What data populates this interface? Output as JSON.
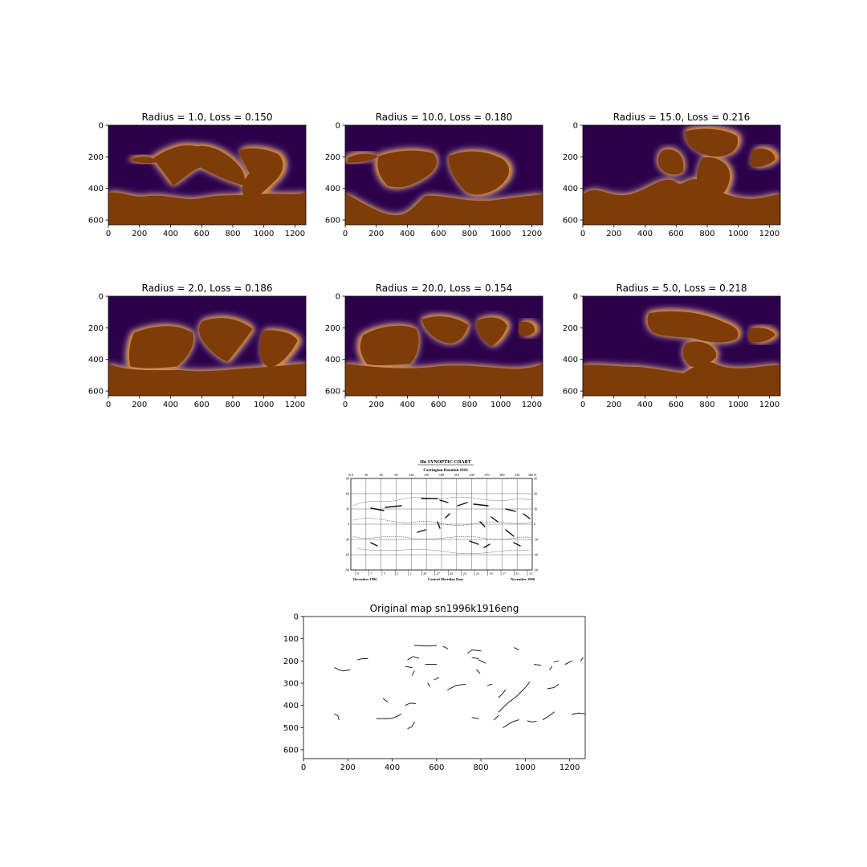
{
  "figure": {
    "panels": [
      {
        "radius": 1.0,
        "loss": 0.15,
        "title": "Radius = 1.0, Loss = 0.150"
      },
      {
        "radius": 10.0,
        "loss": 0.18,
        "title": "Radius = 10.0, Loss = 0.180"
      },
      {
        "radius": 15.0,
        "loss": 0.216,
        "title": "Radius = 15.0, Loss = 0.216"
      },
      {
        "radius": 2.0,
        "loss": 0.186,
        "title": "Radius = 2.0, Loss = 0.186"
      },
      {
        "radius": 20.0,
        "loss": 0.154,
        "title": "Radius = 20.0, Loss = 0.154"
      },
      {
        "radius": 5.0,
        "loss": 0.218,
        "title": "Radius = 5.0, Loss = 0.218"
      }
    ],
    "original": {
      "title": "Original map sn1996k1916eng"
    },
    "synoptic": {
      "title": "Hα SYNOPTIC CHART",
      "subtitle": "Carrington Rotation 1916",
      "top_ticks": [
        "N 0",
        "30",
        "60",
        "90",
        "120",
        "150",
        "180",
        "210",
        "240",
        "270",
        "300",
        "330",
        "360 N"
      ],
      "side_ticks": [
        "90",
        "60",
        "30",
        "0",
        "-30",
        "-60",
        "-90"
      ],
      "bottom_dates": [
        "9",
        "7",
        "5",
        "3",
        "1",
        "29",
        "27",
        "25",
        "23",
        "21",
        "19",
        "17",
        "15",
        "13"
      ],
      "footer_left": "December 1996",
      "footer_center": "Central Meridian Date",
      "footer_right": "November 1996"
    }
  },
  "colors": {
    "dark": "#2d004b",
    "brown": "#7f3b08",
    "orange": "#e08214",
    "white": "#ffffff"
  },
  "chart_data": [
    {
      "type": "heatmap",
      "title": "Radius = 1.0, Loss = 0.150",
      "radius": 1.0,
      "loss": 0.15,
      "xlim": [
        0,
        1270
      ],
      "ylim": [
        630,
        0
      ],
      "xticks": [
        0,
        200,
        400,
        600,
        800,
        1000,
        1200
      ],
      "yticks": [
        0,
        200,
        400,
        600
      ],
      "colormap": "PuOr"
    },
    {
      "type": "heatmap",
      "title": "Radius = 10.0, Loss = 0.180",
      "radius": 10.0,
      "loss": 0.18,
      "xlim": [
        0,
        1270
      ],
      "ylim": [
        630,
        0
      ],
      "xticks": [
        0,
        200,
        400,
        600,
        800,
        1000,
        1200
      ],
      "yticks": [
        0,
        200,
        400,
        600
      ],
      "colormap": "PuOr"
    },
    {
      "type": "heatmap",
      "title": "Radius = 15.0, Loss = 0.216",
      "radius": 15.0,
      "loss": 0.216,
      "xlim": [
        0,
        1270
      ],
      "ylim": [
        630,
        0
      ],
      "xticks": [
        0,
        200,
        400,
        600,
        800,
        1000,
        1200
      ],
      "yticks": [
        0,
        200,
        400,
        600
      ],
      "colormap": "PuOr"
    },
    {
      "type": "heatmap",
      "title": "Radius = 2.0, Loss = 0.186",
      "radius": 2.0,
      "loss": 0.186,
      "xlim": [
        0,
        1270
      ],
      "ylim": [
        630,
        0
      ],
      "xticks": [
        0,
        200,
        400,
        600,
        800,
        1000,
        1200
      ],
      "yticks": [
        0,
        200,
        400,
        600
      ],
      "colormap": "PuOr"
    },
    {
      "type": "heatmap",
      "title": "Radius = 20.0, Loss = 0.154",
      "radius": 20.0,
      "loss": 0.154,
      "xlim": [
        0,
        1270
      ],
      "ylim": [
        630,
        0
      ],
      "xticks": [
        0,
        200,
        400,
        600,
        800,
        1000,
        1200
      ],
      "yticks": [
        0,
        200,
        400,
        600
      ],
      "colormap": "PuOr"
    },
    {
      "type": "heatmap",
      "title": "Radius = 5.0, Loss = 0.218",
      "radius": 5.0,
      "loss": 0.218,
      "xlim": [
        0,
        1270
      ],
      "ylim": [
        630,
        0
      ],
      "xticks": [
        0,
        200,
        400,
        600,
        800,
        1000,
        1200
      ],
      "yticks": [
        0,
        200,
        400,
        600
      ],
      "colormap": "PuOr"
    },
    {
      "type": "line",
      "title": "Original map sn1996k1916eng",
      "xlim": [
        0,
        1270
      ],
      "ylim": [
        640,
        0
      ],
      "xticks": [
        0,
        200,
        400,
        600,
        800,
        1000,
        1200
      ],
      "yticks": [
        0,
        100,
        200,
        300,
        400,
        500,
        600
      ],
      "segments": [
        [
          [
            140,
            230
          ],
          [
            160,
            240
          ],
          [
            180,
            245
          ],
          [
            210,
            240
          ]
        ],
        [
          [
            245,
            195
          ],
          [
            265,
            190
          ],
          [
            290,
            190
          ]
        ],
        [
          [
            500,
            130
          ],
          [
            560,
            133
          ],
          [
            600,
            130
          ]
        ],
        [
          [
            630,
            135
          ],
          [
            650,
            145
          ]
        ],
        [
          [
            470,
            195
          ],
          [
            495,
            180
          ],
          [
            520,
            188
          ]
        ],
        [
          [
            460,
            225
          ],
          [
            490,
            230
          ]
        ],
        [
          [
            550,
            215
          ],
          [
            600,
            215
          ]
        ],
        [
          [
            490,
            265
          ],
          [
            500,
            245
          ]
        ],
        [
          [
            590,
            285
          ],
          [
            610,
            275
          ]
        ],
        [
          [
            560,
            300
          ],
          [
            570,
            315
          ]
        ],
        [
          [
            650,
            330
          ],
          [
            690,
            310
          ],
          [
            730,
            305
          ]
        ],
        [
          [
            740,
            165
          ],
          [
            760,
            150
          ],
          [
            800,
            155
          ]
        ],
        [
          [
            790,
            195
          ],
          [
            820,
            210
          ]
        ],
        [
          [
            760,
            185
          ],
          [
            790,
            190
          ]
        ],
        [
          [
            780,
            240
          ],
          [
            795,
            255
          ]
        ],
        [
          [
            830,
            310
          ],
          [
            850,
            305
          ]
        ],
        [
          [
            880,
            365
          ],
          [
            900,
            345
          ],
          [
            910,
            330
          ]
        ],
        [
          [
            880,
            430
          ],
          [
            920,
            390
          ],
          [
            960,
            360
          ],
          [
            1000,
            320
          ],
          [
            1020,
            295
          ]
        ],
        [
          [
            950,
            140
          ],
          [
            970,
            150
          ]
        ],
        [
          [
            1040,
            215
          ],
          [
            1070,
            220
          ]
        ],
        [
          [
            1110,
            240
          ],
          [
            1120,
            225
          ]
        ],
        [
          [
            1130,
            205
          ],
          [
            1150,
            200
          ]
        ],
        [
          [
            1180,
            215
          ],
          [
            1210,
            200
          ]
        ],
        [
          [
            1250,
            200
          ],
          [
            1260,
            185
          ]
        ],
        [
          [
            1100,
            325
          ],
          [
            1130,
            320
          ],
          [
            1150,
            305
          ]
        ],
        [
          [
            1210,
            440
          ],
          [
            1240,
            435
          ],
          [
            1270,
            438
          ]
        ],
        [
          [
            1010,
            470
          ],
          [
            1030,
            475
          ],
          [
            1050,
            472
          ]
        ],
        [
          [
            1080,
            465
          ],
          [
            1110,
            445
          ],
          [
            1130,
            430
          ]
        ],
        [
          [
            900,
            500
          ],
          [
            940,
            475
          ],
          [
            970,
            465
          ]
        ],
        [
          [
            860,
            465
          ],
          [
            880,
            445
          ]
        ],
        [
          [
            760,
            455
          ],
          [
            790,
            460
          ]
        ],
        [
          [
            330,
            460
          ],
          [
            370,
            460
          ],
          [
            400,
            458
          ],
          [
            420,
            450
          ],
          [
            440,
            440
          ]
        ],
        [
          [
            460,
            400
          ],
          [
            480,
            390
          ],
          [
            505,
            392
          ]
        ],
        [
          [
            470,
            505
          ],
          [
            490,
            495
          ],
          [
            500,
            475
          ]
        ],
        [
          [
            360,
            370
          ],
          [
            380,
            385
          ]
        ],
        [
          [
            140,
            440
          ],
          [
            155,
            445
          ],
          [
            160,
            465
          ]
        ]
      ]
    }
  ]
}
